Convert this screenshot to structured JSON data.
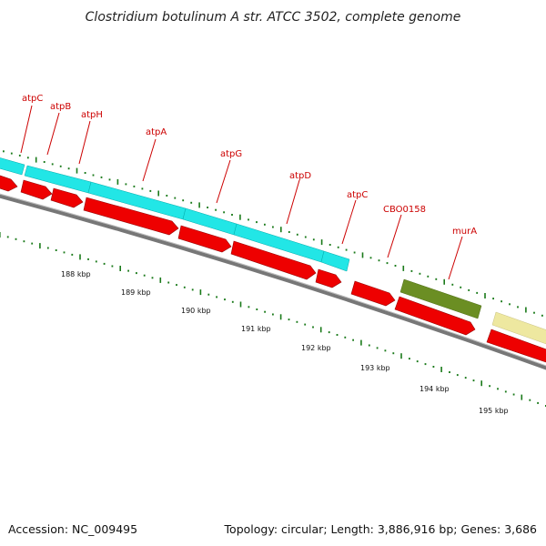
{
  "title": "Clostridium botulinum A str. ATCC 3502, complete genome",
  "footer": {
    "accession_label": "Accession:",
    "accession": "NC_009495",
    "topology_label": "Topology:",
    "topology": "circular",
    "length_label": "Length:",
    "length": "3,886,916 bp",
    "genes_label": "Genes:",
    "genes": "3,686"
  },
  "colors": {
    "cds": "#ee0000",
    "operon_features": "#22e6e6",
    "murA_feature": "#6b8e23",
    "next_feature": "#eee8a0",
    "backbone": "#777777",
    "ticks": "#1a7a1a",
    "labels": "#cc0000"
  },
  "gene_labels": [
    "atpC",
    "atpB",
    "atpH",
    "atpA",
    "atpG",
    "atpD",
    "atpC",
    "CBO0158",
    "murA"
  ],
  "kbp_labels": [
    "188 kbp",
    "189 kbp",
    "190 kbp",
    "191 kbp",
    "192 kbp",
    "193 kbp",
    "194 kbp",
    "195 kbp"
  ]
}
